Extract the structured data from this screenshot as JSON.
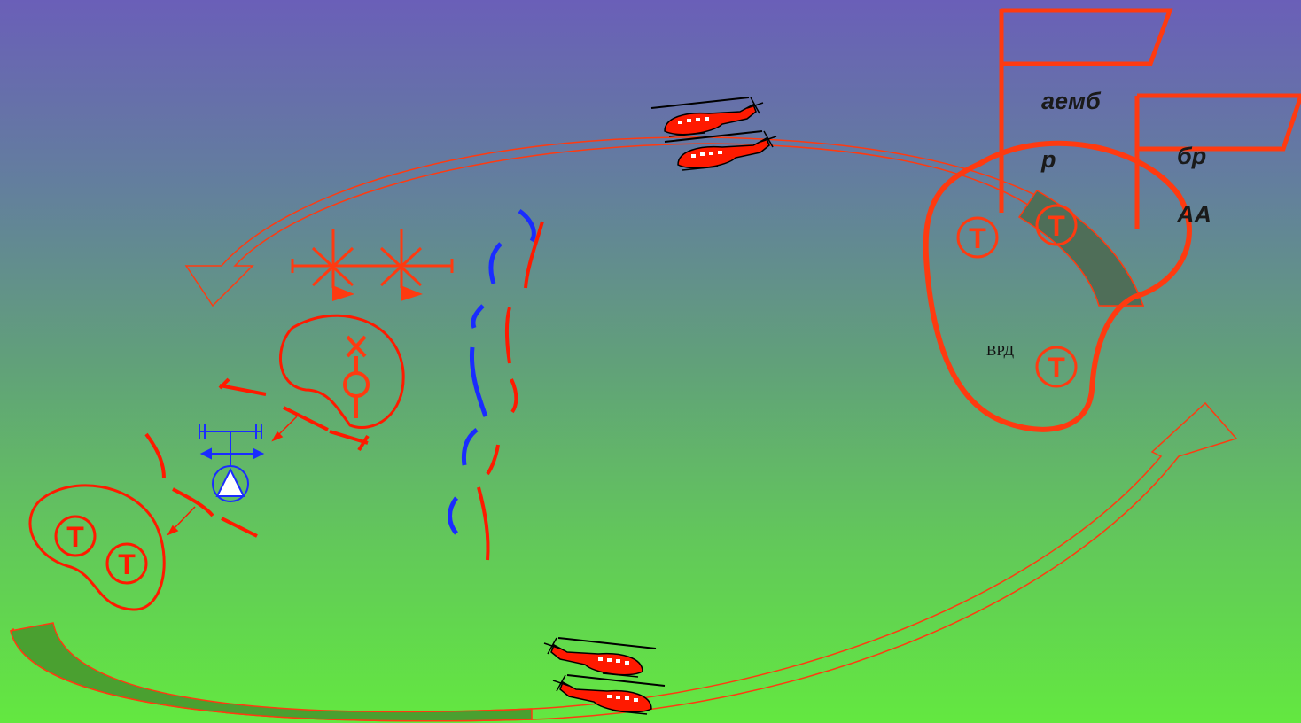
{
  "labels": {
    "flag1_line1": "аемб",
    "flag1_line2": "р",
    "flag2_line1": "бр",
    "flag2_line2": "АА",
    "zone_label": "ВРД",
    "tank_symbol": "Т"
  },
  "colors": {
    "red": "#ff2a00",
    "orange_red": "#ff4a10",
    "blue": "#1a2cff",
    "arrow_fill_dark": "#4f6e58",
    "arrow_fill_green": "#4aa030"
  }
}
